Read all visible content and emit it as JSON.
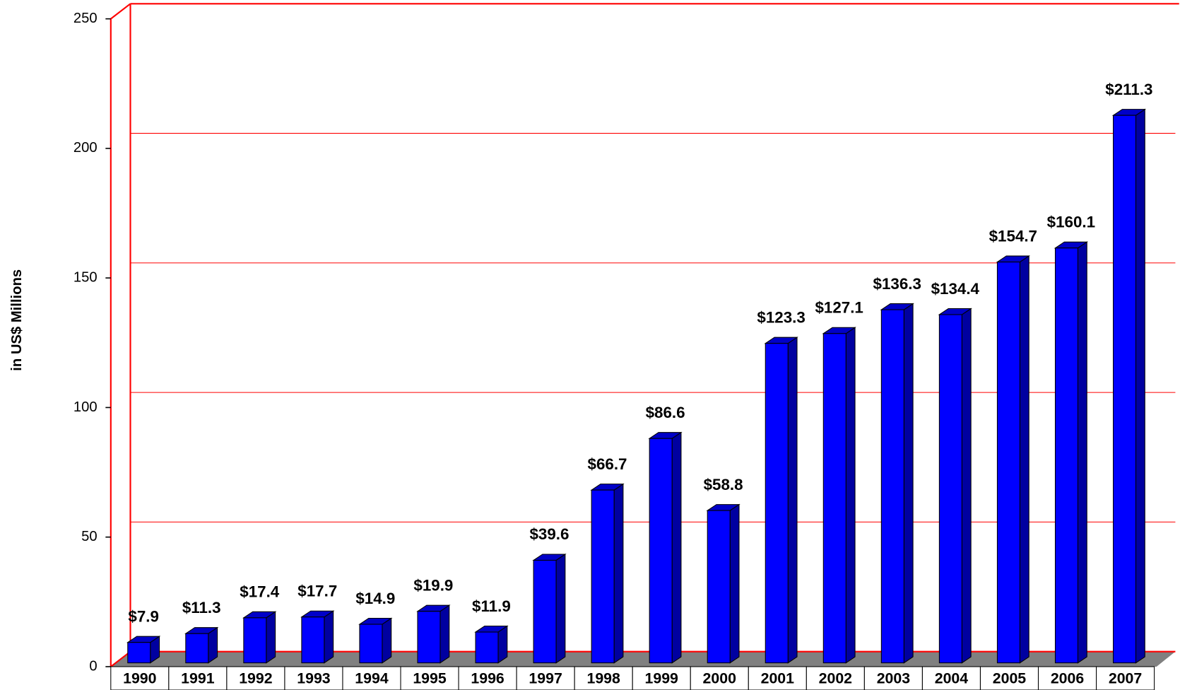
{
  "chart_data": {
    "type": "bar3d",
    "y_axis_label": "in US$ Millions",
    "categories": [
      "1990",
      "1991",
      "1992",
      "1993",
      "1994",
      "1995",
      "1996",
      "1997",
      "1998",
      "1999",
      "2000",
      "2001",
      "2002",
      "2003",
      "2004",
      "2005",
      "2006",
      "2007"
    ],
    "values": [
      7.9,
      11.3,
      17.4,
      17.7,
      14.9,
      19.9,
      11.9,
      39.6,
      66.7,
      86.6,
      58.8,
      123.3,
      127.1,
      136.3,
      134.4,
      154.7,
      160.1,
      211.3
    ],
    "value_labels": [
      "$7.9",
      "$11.3",
      "$17.4",
      "$17.7",
      "$14.9",
      "$19.9",
      "$11.9",
      "$39.6",
      "$66.7",
      "$86.6",
      "$58.8",
      "$123.3",
      "$127.1",
      "$136.3",
      "$134.4",
      "$154.7",
      "$160.1",
      "$211.3"
    ],
    "color": "#0000ff",
    "ylim": [
      0,
      250
    ],
    "yticks": [
      0,
      50,
      100,
      150,
      200,
      250
    ],
    "grid": true
  }
}
